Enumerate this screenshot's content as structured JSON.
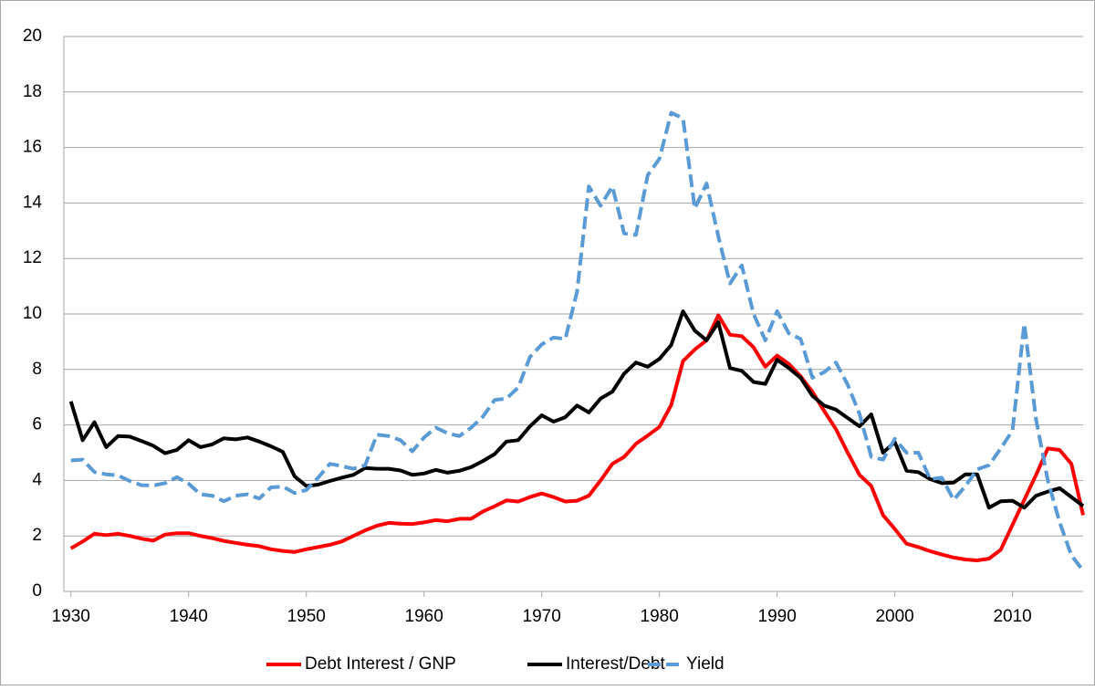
{
  "chart_data": {
    "type": "line",
    "x": [
      1930,
      1931,
      1932,
      1933,
      1934,
      1935,
      1936,
      1937,
      1938,
      1939,
      1940,
      1941,
      1942,
      1943,
      1944,
      1945,
      1946,
      1947,
      1948,
      1949,
      1950,
      1951,
      1952,
      1953,
      1954,
      1955,
      1956,
      1957,
      1958,
      1959,
      1960,
      1961,
      1962,
      1963,
      1964,
      1965,
      1966,
      1967,
      1968,
      1969,
      1970,
      1971,
      1972,
      1973,
      1974,
      1975,
      1976,
      1977,
      1978,
      1979,
      1980,
      1981,
      1982,
      1983,
      1984,
      1985,
      1986,
      1987,
      1988,
      1989,
      1990,
      1991,
      1992,
      1993,
      1994,
      1995,
      1996,
      1997,
      1998,
      1999,
      2000,
      2001,
      2002,
      2003,
      2004,
      2005,
      2006,
      2007,
      2008,
      2009,
      2010,
      2011,
      2012,
      2013,
      2014,
      2015,
      2016
    ],
    "series": [
      {
        "name": "Debt Interest / GNP",
        "color": "#ff0000",
        "dashed": false,
        "values": [
          1.55,
          1.8,
          2.08,
          2.03,
          2.08,
          2.0,
          1.9,
          1.83,
          2.05,
          2.1,
          2.1,
          2.0,
          1.92,
          1.82,
          1.75,
          1.68,
          1.63,
          1.52,
          1.46,
          1.42,
          1.52,
          1.6,
          1.68,
          1.8,
          2.0,
          2.2,
          2.37,
          2.47,
          2.44,
          2.43,
          2.49,
          2.57,
          2.53,
          2.62,
          2.62,
          2.88,
          3.07,
          3.28,
          3.24,
          3.4,
          3.53,
          3.4,
          3.24,
          3.27,
          3.45,
          4.0,
          4.6,
          4.85,
          5.32,
          5.62,
          5.93,
          6.72,
          8.3,
          8.72,
          9.05,
          9.95,
          9.25,
          9.2,
          8.8,
          8.1,
          8.5,
          8.2,
          7.75,
          7.2,
          6.5,
          5.85,
          5.0,
          4.2,
          3.8,
          2.75,
          2.25,
          1.72,
          1.6,
          1.45,
          1.33,
          1.22,
          1.15,
          1.12,
          1.18,
          1.5,
          2.4,
          3.3,
          4.2,
          5.15,
          5.1,
          4.6,
          2.75
        ]
      },
      {
        "name": "Interest/Debt",
        "color": "#000000",
        "dashed": false,
        "values": [
          6.85,
          5.45,
          6.1,
          5.2,
          5.6,
          5.58,
          5.42,
          5.25,
          4.98,
          5.1,
          5.45,
          5.2,
          5.3,
          5.52,
          5.48,
          5.55,
          5.4,
          5.23,
          5.03,
          4.15,
          3.8,
          3.85,
          3.98,
          4.1,
          4.2,
          4.45,
          4.42,
          4.42,
          4.36,
          4.2,
          4.25,
          4.38,
          4.28,
          4.35,
          4.48,
          4.7,
          4.95,
          5.4,
          5.45,
          5.95,
          6.35,
          6.12,
          6.28,
          6.7,
          6.45,
          6.95,
          7.2,
          7.85,
          8.25,
          8.1,
          8.38,
          8.88,
          10.1,
          9.4,
          9.05,
          9.7,
          8.05,
          7.95,
          7.55,
          7.48,
          8.35,
          8.05,
          7.7,
          7.05,
          6.7,
          6.55,
          6.25,
          5.95,
          6.38,
          5.0,
          5.38,
          4.35,
          4.3,
          4.05,
          3.9,
          3.92,
          4.22,
          4.22,
          3.02,
          3.25,
          3.27,
          3.02,
          3.45,
          3.6,
          3.72,
          3.4,
          3.08
        ]
      },
      {
        "name": "Yield",
        "color": "#5b9bd5",
        "dashed": true,
        "values": [
          4.72,
          4.75,
          4.3,
          4.22,
          4.18,
          3.98,
          3.83,
          3.82,
          3.9,
          4.12,
          3.88,
          3.5,
          3.45,
          3.25,
          3.45,
          3.5,
          3.35,
          3.75,
          3.78,
          3.55,
          3.65,
          4.1,
          4.6,
          4.52,
          4.42,
          4.55,
          5.65,
          5.6,
          5.45,
          5.05,
          5.55,
          5.9,
          5.7,
          5.6,
          5.9,
          6.3,
          6.9,
          6.95,
          7.35,
          8.45,
          8.9,
          9.15,
          9.1,
          10.8,
          14.6,
          13.9,
          14.6,
          12.9,
          12.85,
          15.0,
          15.6,
          17.25,
          17.05,
          13.8,
          14.7,
          12.8,
          11.1,
          11.75,
          10.0,
          9.05,
          10.1,
          9.3,
          9.1,
          7.7,
          7.9,
          8.25,
          7.45,
          6.4,
          4.85,
          4.75,
          5.5,
          5.0,
          5.0,
          4.05,
          4.1,
          3.3,
          3.8,
          4.4,
          4.55,
          5.15,
          5.8,
          9.65,
          6.2,
          4.0,
          2.5,
          1.3,
          0.75
        ]
      }
    ],
    "xlim": [
      1929.4,
      2016
    ],
    "xticks": [
      1930,
      1940,
      1950,
      1960,
      1970,
      1980,
      1990,
      2000,
      2010
    ],
    "ylim": [
      0,
      20
    ],
    "yticks": [
      0,
      2,
      4,
      6,
      8,
      10,
      12,
      14,
      16,
      18,
      20
    ],
    "grid": true,
    "legend": "bottom"
  }
}
